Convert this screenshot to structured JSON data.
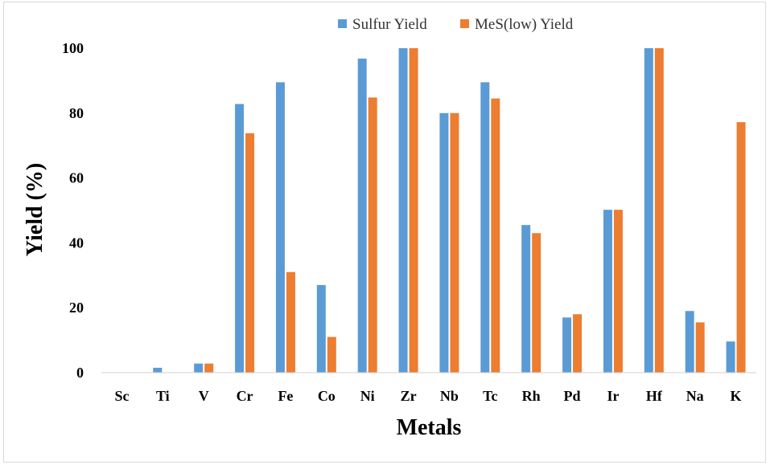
{
  "chart_data": {
    "type": "bar",
    "categories": [
      "Sc",
      "Ti",
      "V",
      "Cr",
      "Fe",
      "Co",
      "Ni",
      "Zr",
      "Nb",
      "Tc",
      "Rh",
      "Pd",
      "Ir",
      "Hf",
      "Na",
      "K"
    ],
    "series": [
      {
        "name": "Sulfur Yield",
        "color": "#5b9bd5",
        "values": [
          0,
          1.5,
          2.8,
          82.8,
          89.5,
          27,
          96.8,
          100,
          80,
          89.5,
          45.5,
          17,
          50.2,
          100,
          19,
          9.6
        ]
      },
      {
        "name": "MeS(low) Yield",
        "color": "#ed7d31",
        "values": [
          0,
          0,
          2.8,
          73.8,
          31,
          11,
          84.8,
          100,
          80,
          84.5,
          43,
          18,
          50.2,
          100,
          15.5,
          77.2
        ]
      }
    ],
    "title": "",
    "xlabel": "Metals",
    "ylabel": "Yield (%)",
    "ylim": [
      0,
      100
    ],
    "yticks": [
      0,
      20,
      40,
      60,
      80,
      100
    ],
    "grid": false,
    "legend_position": "top-center"
  }
}
